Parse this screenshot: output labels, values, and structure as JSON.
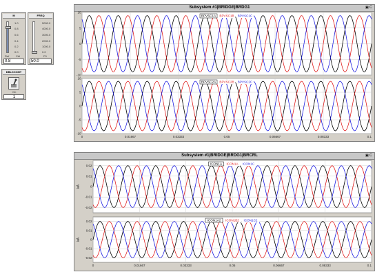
{
  "controls": {
    "m_slider": {
      "title": "M",
      "ticks": [
        "1.0",
        "0.8",
        "0.6",
        "0.4",
        "0.2",
        "0.0"
      ],
      "footer": [
        "Ref",
        "Ctrl"
      ],
      "value_text": "0.8",
      "level": 0.8
    },
    "freq_slider": {
      "title": "FREQ",
      "ticks": [
        "5000.0",
        "4000.0",
        "3000.0",
        "2000.0",
        "1000.0",
        "0.0"
      ],
      "footer": [
        "",
        "F0"
      ],
      "value_text": "50.0",
      "level": 0.01
    },
    "switch": {
      "title": "DBLKCONT",
      "footer": "On",
      "value_text": "1"
    }
  },
  "graphs": [
    {
      "title": "Subsystem #1|BRIDGE|BRDG1",
      "tools_label": "C",
      "x_ticks": [
        "0",
        "0.01667",
        "0.03333",
        "0.05",
        "0.06667",
        "0.08333",
        "0.1"
      ],
      "plots": [
        {
          "legend": [
            "BPVSC1A",
            "BPVSC1B",
            "BPVSC1C"
          ],
          "y_ticks": [
            "10",
            "5",
            "0",
            "-5",
            "-10"
          ],
          "ylabel": ""
        },
        {
          "legend": [
            "BPVSC2A",
            "BPVSC2B",
            "BPVSC2C"
          ],
          "y_ticks": [
            "10",
            "5",
            "0",
            "-5",
            "-10"
          ],
          "ylabel": ""
        }
      ]
    },
    {
      "title": "Subsystem #1|BRIDGE|BRDG1|BRCRL",
      "tools_label": "C",
      "x_ticks": [
        "0",
        "0.01667",
        "0.03333",
        "0.05",
        "0.06667",
        "0.08333",
        "0.1"
      ],
      "plots": [
        {
          "legend": [
            "ICON1A",
            "ICON1A",
            "ICON1C"
          ],
          "y_ticks": [
            "0.02",
            "0.01",
            "0",
            "-0.01",
            "-0.02"
          ],
          "ylabel": "kA"
        },
        {
          "legend": [
            "ICON1A2",
            "ICON1B2",
            "ICON1C2"
          ],
          "y_ticks": [
            "0.02",
            "0.01",
            "0",
            "-0.01",
            "-0.02"
          ],
          "ylabel": "kA"
        }
      ]
    }
  ],
  "chart_data": [
    {
      "type": "line",
      "title": "Subsystem #1|BRIDGE|BRDG1",
      "xlabel": "",
      "ylabel": "",
      "xlim": [
        0,
        0.1
      ],
      "ylim": [
        -10,
        10
      ],
      "grid": true,
      "legend": "top-center",
      "frequency_hz": 100,
      "amplitude": 9,
      "phase_shift_deg": 120,
      "series": [
        {
          "name": "BPVSC1A",
          "color": "#000000"
        },
        {
          "name": "BPVSC1B",
          "color": "#e02020"
        },
        {
          "name": "BPVSC1C",
          "color": "#2020e0"
        }
      ]
    },
    {
      "type": "line",
      "title": "",
      "xlabel": "",
      "ylabel": "",
      "xlim": [
        0,
        0.1
      ],
      "ylim": [
        -10,
        10
      ],
      "grid": true,
      "legend": "top-center",
      "frequency_hz": 100,
      "amplitude": 9,
      "phase_shift_deg": 120,
      "series": [
        {
          "name": "BPVSC2A",
          "color": "#000000"
        },
        {
          "name": "BPVSC2B",
          "color": "#e02020"
        },
        {
          "name": "BPVSC2C",
          "color": "#2020e0"
        }
      ]
    },
    {
      "type": "line",
      "title": "Subsystem #1|BRIDGE|BRDG1|BRCRL",
      "xlabel": "",
      "ylabel": "kA",
      "xlim": [
        0,
        0.1
      ],
      "ylim": [
        -0.025,
        0.025
      ],
      "grid": true,
      "legend": "top-center",
      "frequency_hz": 100,
      "amplitude": 0.02,
      "phase_shift_deg": 120,
      "series": [
        {
          "name": "ICON1A",
          "color": "#000000"
        },
        {
          "name": "ICON1A",
          "color": "#e02020"
        },
        {
          "name": "ICON1C",
          "color": "#2020e0"
        }
      ]
    },
    {
      "type": "line",
      "title": "",
      "xlabel": "",
      "ylabel": "kA",
      "xlim": [
        0,
        0.1
      ],
      "ylim": [
        -0.025,
        0.025
      ],
      "grid": true,
      "legend": "top-center",
      "frequency_hz": 100,
      "amplitude": 0.02,
      "phase_shift_deg": 120,
      "series": [
        {
          "name": "ICON1A2",
          "color": "#000000"
        },
        {
          "name": "ICON1B2",
          "color": "#e02020"
        },
        {
          "name": "ICON1C2",
          "color": "#2020e0"
        }
      ]
    }
  ]
}
